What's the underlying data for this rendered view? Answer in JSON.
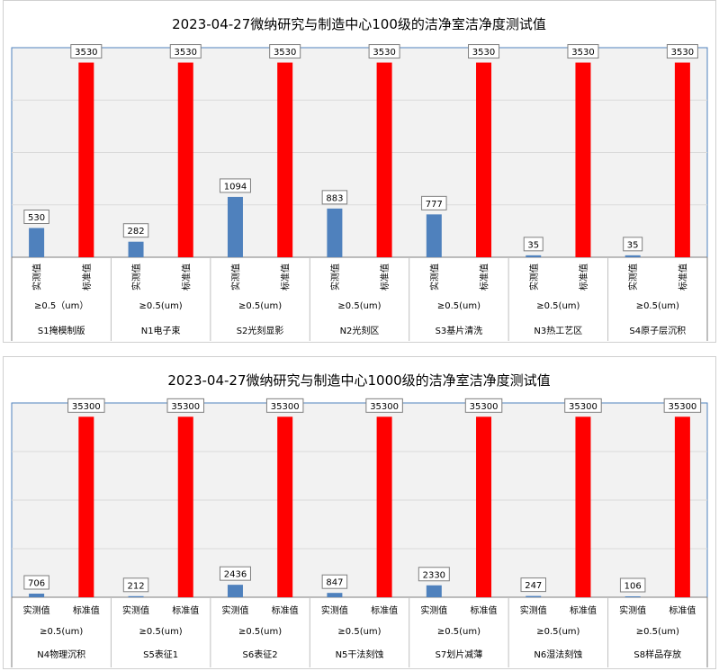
{
  "colors": {
    "measured": "#4f81bd",
    "standard": "#ff0000",
    "plot_bg": "#f2f2f2",
    "grid": "#d9d9d9"
  },
  "chart_data": [
    {
      "type": "bar",
      "title": "2023-04-27微纳研究与制造中心100级的洁净室洁净度测试值",
      "series_labels": [
        "实测值",
        "标准值"
      ],
      "groups": [
        {
          "particle": "≥0.5（um）",
          "area": "S1掩模制版",
          "measured": 530,
          "standard": 3530
        },
        {
          "particle": "≥0.5(um)",
          "area": "N1电子束",
          "measured": 282,
          "standard": 3530
        },
        {
          "particle": "≥0.5(um)",
          "area": "S2光刻显影",
          "measured": 1094,
          "standard": 3530
        },
        {
          "particle": "≥0.5(um)",
          "area": "N2光刻区",
          "measured": 883,
          "standard": 3530
        },
        {
          "particle": "≥0.5(um)",
          "area": "S3基片清洗",
          "measured": 777,
          "standard": 3530
        },
        {
          "particle": "≥0.5(um)",
          "area": "N3热工艺区",
          "measured": 35,
          "standard": 3530
        },
        {
          "particle": "≥0.5(um)",
          "area": "S4原子层沉积",
          "measured": 35,
          "standard": 3530
        }
      ],
      "ylim": [
        0,
        3800
      ],
      "grid": true
    },
    {
      "type": "bar",
      "title": "2023-04-27微纳研究与制造中心1000级的洁净室洁净度测试值",
      "series_labels": [
        "实测值",
        "标准值"
      ],
      "groups": [
        {
          "particle": "≥0.5(um)",
          "area": "N4物理沉积",
          "measured": 706,
          "standard": 35300
        },
        {
          "particle": "≥0.5(um)",
          "area": "S5表征1",
          "measured": 212,
          "standard": 35300
        },
        {
          "particle": "≥0.5(um)",
          "area": "S6表征2",
          "measured": 2436,
          "standard": 35300
        },
        {
          "particle": "≥0.5(um)",
          "area": "N5干法刻蚀",
          "measured": 847,
          "standard": 35300
        },
        {
          "particle": "≥0.5(um)",
          "area": "S7划片减薄",
          "measured": 2330,
          "standard": 35300
        },
        {
          "particle": "≥0.5(um)",
          "area": "N6湿法刻蚀",
          "measured": 247,
          "standard": 35300
        },
        {
          "particle": "≥0.5(um)",
          "area": "S8样品存放",
          "measured": 106,
          "standard": 35300
        }
      ],
      "ylim": [
        0,
        38000
      ],
      "grid": true
    }
  ]
}
